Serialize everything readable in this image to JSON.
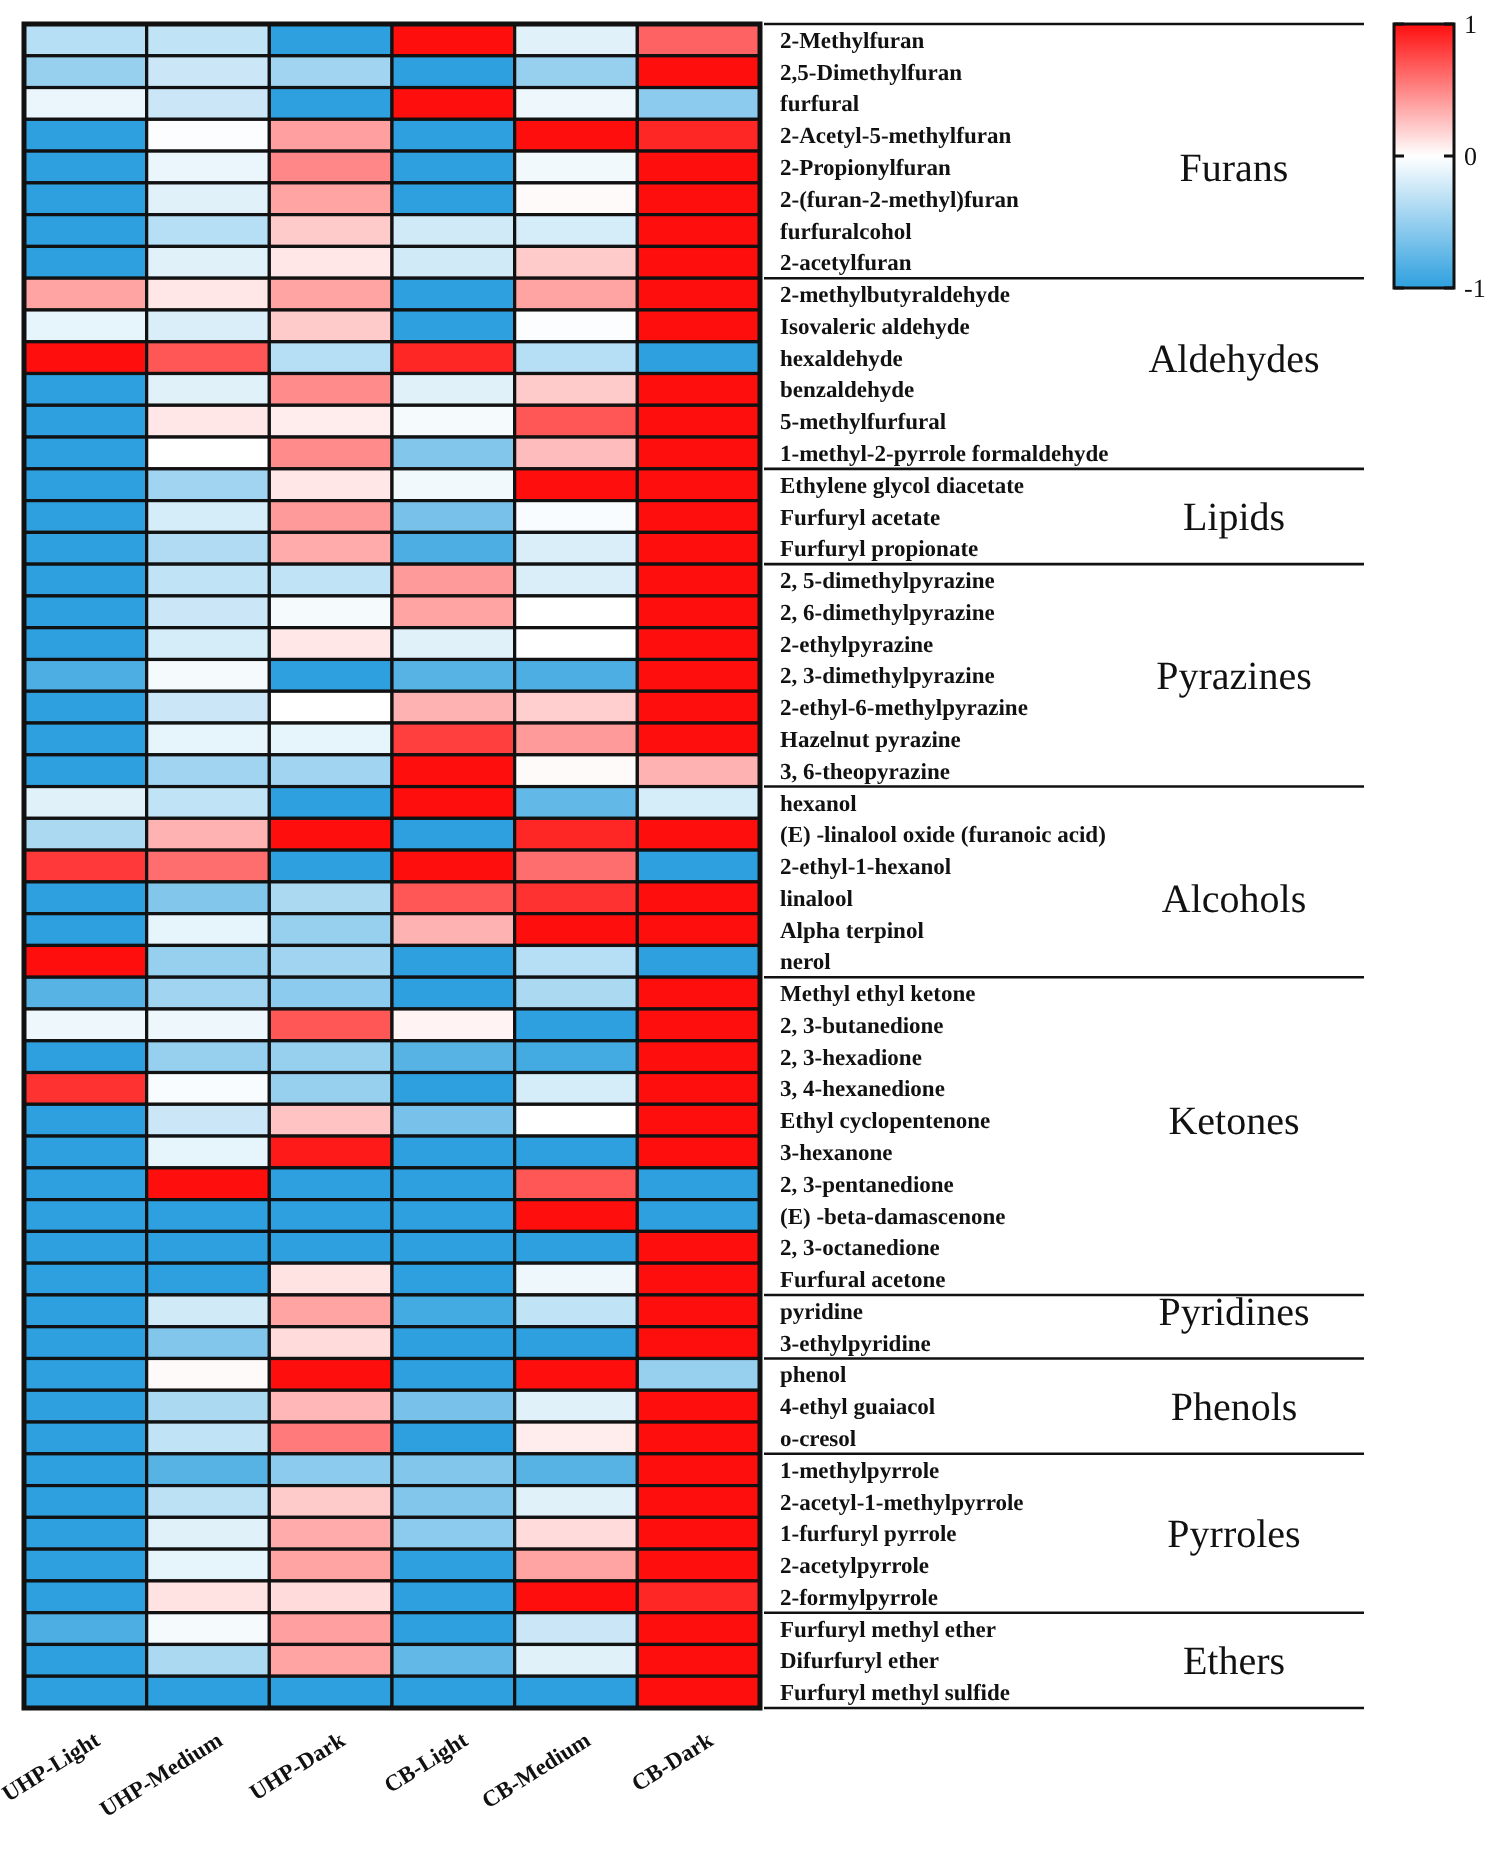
{
  "chart_data": {
    "type": "heatmap",
    "categories": [
      "UHP-Light",
      "UHP-Medium",
      "UHP-Dark",
      "CB-Light",
      "CB-Medium",
      "CB-Dark"
    ],
    "y_categories": [
      "2-Methylfuran",
      "2,5-Dimethylfuran",
      "furfural",
      "2-Acetyl-5-methylfuran",
      "2-Propionylfuran",
      "2-(furan-2-methyl)furan",
      "furfuralcohol",
      "2-acetylfuran",
      "2-methylbutyraldehyde",
      "Isovaleric aldehyde",
      "hexaldehyde",
      "benzaldehyde",
      "5-methylfurfural",
      "1-methyl-2-pyrrole formaldehyde",
      "Ethylene glycol diacetate",
      "Furfuryl acetate",
      "Furfuryl propionate",
      "2, 5-dimethylpyrazine",
      "2, 6-dimethylpyrazine",
      "2-ethylpyrazine",
      "2, 3-dimethylpyrazine",
      "2-ethyl-6-methylpyrazine",
      "Hazelnut pyrazine",
      "3, 6-theopyrazine",
      "hexanol",
      "(E) -linalool oxide (furanoic acid)",
      "2-ethyl-1-hexanol",
      "linalool",
      "Alpha terpinol",
      "nerol",
      "Methyl ethyl ketone",
      "2, 3-butanedione",
      "2, 3-hexadione",
      "3, 4-hexanedione",
      "Ethyl cyclopentenone",
      "3-hexanone",
      "2, 3-pentanedione",
      "(E) -beta-damascenone",
      "2, 3-octanedione",
      "Furfural acetone",
      "pyridine",
      "3-ethylpyridine",
      "phenol",
      "4-ethyl guaiacol",
      "o-cresol",
      "1-methylpyrrole",
      "2-acetyl-1-methylpyrrole",
      "1-furfuryl pyrrole",
      "2-acetylpyrrole",
      "2-formylpyrrole",
      "Furfuryl methyl ether",
      "Difurfuryl ether",
      "Furfuryl methyl sulfide"
    ],
    "cells": [
      [
        -0.35,
        -0.3,
        -1,
        1,
        -0.15,
        0.65
      ],
      [
        -0.5,
        -0.25,
        -0.45,
        -1,
        -0.5,
        1
      ],
      [
        -0.1,
        -0.25,
        -1,
        1,
        -0.08,
        -0.55
      ],
      [
        -1,
        -0.02,
        0.4,
        -1,
        1,
        0.9
      ],
      [
        -1,
        -0.1,
        0.5,
        -1,
        -0.06,
        1
      ],
      [
        -1,
        -0.15,
        0.38,
        -1,
        0.02,
        1
      ],
      [
        -1,
        -0.35,
        0.22,
        -0.22,
        -0.2,
        1
      ],
      [
        -1,
        -0.15,
        0.1,
        -0.22,
        0.22,
        1
      ],
      [
        0.38,
        0.1,
        0.38,
        -1,
        0.38,
        1
      ],
      [
        -0.12,
        -0.18,
        0.22,
        -1,
        -0.02,
        1
      ],
      [
        1,
        0.7,
        -0.35,
        0.9,
        -0.35,
        -1
      ],
      [
        -1,
        -0.15,
        0.48,
        -0.15,
        0.22,
        1
      ],
      [
        -1,
        0.1,
        0.08,
        -0.05,
        0.7,
        1
      ],
      [
        -1,
        0,
        0.48,
        -0.6,
        0.28,
        1
      ],
      [
        -1,
        -0.45,
        0.1,
        -0.06,
        1,
        1
      ],
      [
        -1,
        -0.2,
        0.42,
        -0.65,
        -0.03,
        1
      ],
      [
        -1,
        -0.38,
        0.35,
        -0.85,
        -0.18,
        1
      ],
      [
        -1,
        -0.3,
        -0.3,
        0.42,
        -0.18,
        1
      ],
      [
        -1,
        -0.25,
        -0.05,
        0.38,
        0,
        1
      ],
      [
        -1,
        -0.2,
        0.1,
        -0.15,
        0,
        1
      ],
      [
        -0.85,
        -0.05,
        -1,
        -0.8,
        -0.85,
        1
      ],
      [
        -1,
        -0.25,
        0,
        0.32,
        0.2,
        1
      ],
      [
        -1,
        -0.12,
        -0.12,
        0.8,
        0.42,
        1
      ],
      [
        -1,
        -0.45,
        -0.45,
        1,
        0.02,
        0.32
      ],
      [
        -0.15,
        -0.3,
        -1,
        1,
        -0.75,
        -0.2
      ],
      [
        -0.4,
        0.32,
        1,
        -1,
        0.9,
        1
      ],
      [
        0.82,
        0.6,
        -1,
        1,
        0.6,
        -1
      ],
      [
        -1,
        -0.6,
        -0.4,
        0.7,
        0.85,
        1
      ],
      [
        -1,
        -0.12,
        -0.5,
        0.32,
        1,
        1
      ],
      [
        1,
        -0.5,
        -0.45,
        -1,
        -0.35,
        -1
      ],
      [
        -0.8,
        -0.45,
        -0.55,
        -1,
        -0.4,
        1
      ],
      [
        -0.08,
        -0.08,
        0.7,
        0.05,
        -1,
        1
      ],
      [
        -1,
        -0.5,
        -0.5,
        -0.8,
        -0.9,
        1
      ],
      [
        0.85,
        -0.03,
        -0.5,
        -1,
        -0.2,
        1
      ],
      [
        -1,
        -0.25,
        0.25,
        -0.65,
        0,
        1
      ],
      [
        -1,
        -0.12,
        0.95,
        -1,
        -1,
        1
      ],
      [
        -1,
        1,
        -1,
        -1,
        0.7,
        -1
      ],
      [
        -1,
        -1,
        -1,
        -1,
        1,
        -1
      ],
      [
        -1,
        -1,
        -1,
        -1,
        -1,
        1
      ],
      [
        -1,
        -1,
        0.12,
        -1,
        -0.08,
        1
      ],
      [
        -1,
        -0.22,
        0.38,
        -0.9,
        -0.3,
        1
      ],
      [
        -1,
        -0.6,
        0.15,
        -1,
        -1,
        1
      ],
      [
        -1,
        0.02,
        1,
        -1,
        1,
        -0.5
      ],
      [
        -1,
        -0.4,
        0.3,
        -0.65,
        -0.15,
        1
      ],
      [
        -1,
        -0.3,
        0.55,
        -1,
        0.08,
        1
      ],
      [
        -1,
        -0.8,
        -0.55,
        -0.6,
        -0.8,
        1
      ],
      [
        -1,
        -0.32,
        0.22,
        -0.6,
        -0.15,
        1
      ],
      [
        -1,
        -0.15,
        0.35,
        -0.55,
        0.15,
        1
      ],
      [
        -1,
        -0.12,
        0.38,
        -1,
        0.38,
        1
      ],
      [
        -1,
        0.12,
        0.15,
        -1,
        1,
        0.9
      ],
      [
        -0.85,
        -0.05,
        0.4,
        -1,
        -0.25,
        1
      ],
      [
        -1,
        -0.4,
        0.38,
        -0.75,
        -0.15,
        1
      ],
      [
        -1,
        -1,
        -1,
        -1,
        -1,
        1
      ]
    ],
    "clim": [
      -1,
      1
    ],
    "cticks": [
      -1,
      0,
      1
    ],
    "y2_categories": [
      null,
      null,
      null,
      null,
      "Furans",
      null,
      null,
      null,
      null,
      null,
      "Aldehydes",
      null,
      null,
      null,
      null,
      "Lipids",
      null,
      null,
      null,
      null,
      "Pyrazines",
      null,
      null,
      null,
      null,
      null,
      null,
      "Alcohols",
      null,
      null,
      null,
      null,
      null,
      null,
      "Ketones",
      null,
      null,
      null,
      null,
      null,
      "Pyridines",
      null,
      null,
      "Phenols",
      null,
      null,
      null,
      "Pyrroles",
      null,
      null,
      null,
      "Ethers",
      null
    ]
  }
}
